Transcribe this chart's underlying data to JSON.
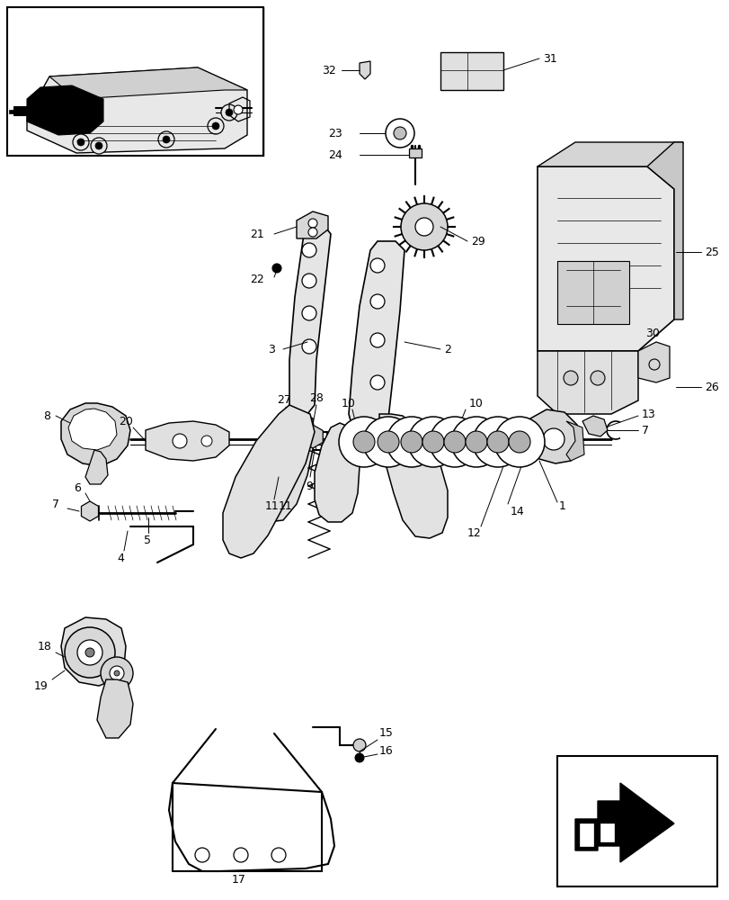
{
  "bg": "#f0f0f0",
  "lw_main": 1.2,
  "lw_thin": 0.7,
  "lw_thick": 1.8,
  "fs_label": 9,
  "fig_w": 8.12,
  "fig_h": 10.0,
  "dpi": 100
}
